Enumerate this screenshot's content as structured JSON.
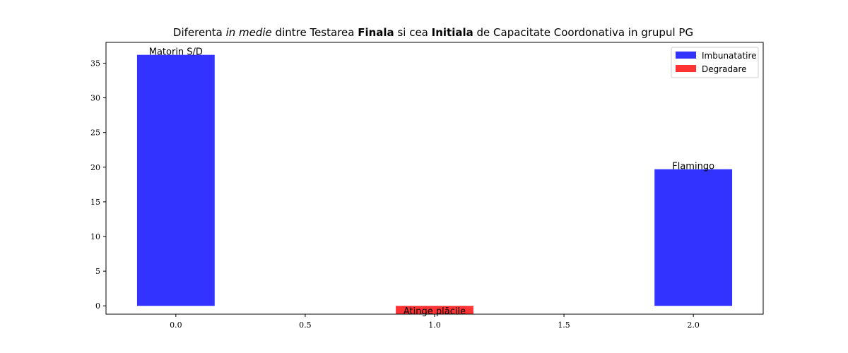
{
  "chart_data": {
    "type": "bar",
    "title": {
      "prefix": "Diferenta ",
      "italic": "in medie",
      "mid1": " dintre Testarea ",
      "bold1": "Finala",
      "mid2": " si cea ",
      "bold2": "Initiala",
      "suffix": " de Capacitate Coordonativa in grupul PG"
    },
    "xlabel": "",
    "ylabel": "",
    "xlim": [
      -0.27,
      2.27
    ],
    "ylim": [
      -1.2,
      38.0
    ],
    "xticks": [
      "0.0",
      "0.5",
      "1.0",
      "1.5",
      "2.0"
    ],
    "xtick_values": [
      0.0,
      0.5,
      1.0,
      1.5,
      2.0
    ],
    "yticks": [
      "0",
      "5",
      "10",
      "15",
      "20",
      "25",
      "30",
      "35"
    ],
    "ytick_values": [
      0,
      5,
      10,
      15,
      20,
      25,
      30,
      35
    ],
    "bar_width": 0.3,
    "bars": [
      {
        "x": 0.0,
        "value": 36.2,
        "label": "Matorin S/D",
        "series": "Imbunatatire"
      },
      {
        "x": 1.0,
        "value": -1.2,
        "label": "Atinge plăcile",
        "series": "Degradare"
      },
      {
        "x": 2.0,
        "value": 19.7,
        "label": "Flamingo",
        "series": "Imbunatatire"
      }
    ],
    "legend": {
      "placement": "top-right",
      "entries": [
        {
          "name": "Imbunatatire",
          "color": "#3333ff"
        },
        {
          "name": "Degradare",
          "color": "#ff3333"
        }
      ]
    },
    "grid": false
  }
}
